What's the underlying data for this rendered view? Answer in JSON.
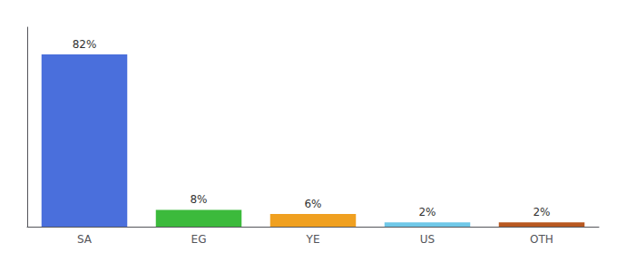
{
  "chart_data": {
    "type": "bar",
    "categories": [
      "SA",
      "EG",
      "YE",
      "US",
      "OTH"
    ],
    "values": [
      82,
      8,
      6,
      2,
      2
    ],
    "value_labels": [
      "82%",
      "8%",
      "6%",
      "2%",
      "2%"
    ],
    "colors": [
      "#4a6fdc",
      "#3cba3c",
      "#f0a020",
      "#70c8e8",
      "#b85820"
    ],
    "data_labels": true,
    "ylim": [
      0,
      95
    ],
    "tick_labels": "x",
    "grid": false
  }
}
